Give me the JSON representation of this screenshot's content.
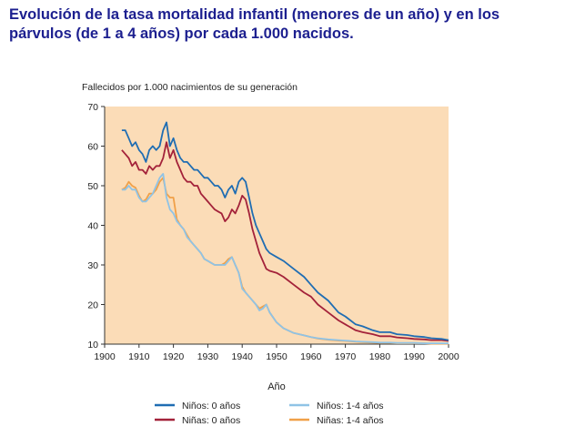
{
  "title": "Evolución de la tasa mortalidad infantil (menores de un año) y en los párvulos (de 1 a 4 años) por cada 1.000 nacidos.",
  "colors": {
    "plot_background": "#fbdcb7",
    "axis": "#333333"
  },
  "chart_data": {
    "type": "line",
    "title": "",
    "ylabel": "Fallecidos por 1.000 nacimientos de su generación",
    "xlabel": "Año",
    "xlim": [
      1900,
      2000
    ],
    "ylim": [
      10,
      70
    ],
    "xticks": [
      "1900",
      "1910",
      "1920",
      "1930",
      "1940",
      "1950",
      "1960",
      "1970",
      "1980",
      "1990",
      "2000"
    ],
    "yticks": [
      "10",
      "20",
      "30",
      "40",
      "50",
      "60",
      "70"
    ],
    "grid": false,
    "legend_position": "bottom",
    "series": [
      {
        "name": "Niños: 0 años",
        "color": "#1f6db3",
        "x": [
          1905,
          1906,
          1907,
          1908,
          1909,
          1910,
          1911,
          1912,
          1913,
          1914,
          1915,
          1916,
          1917,
          1918,
          1919,
          1920,
          1921,
          1922,
          1923,
          1924,
          1925,
          1926,
          1927,
          1928,
          1929,
          1930,
          1931,
          1932,
          1933,
          1934,
          1935,
          1936,
          1937,
          1938,
          1939,
          1940,
          1941,
          1942,
          1943,
          1944,
          1945,
          1946,
          1947,
          1948,
          1950,
          1952,
          1955,
          1958,
          1960,
          1962,
          1965,
          1968,
          1970,
          1973,
          1975,
          1978,
          1980,
          1983,
          1985,
          1988,
          1990,
          1993,
          1995,
          1998,
          2000
        ],
        "y": [
          64,
          64,
          62,
          60,
          61,
          59,
          58,
          56,
          59,
          60,
          59,
          60,
          64,
          66,
          60,
          62,
          59,
          57,
          56,
          56,
          55,
          54,
          54,
          53,
          52,
          52,
          51,
          50,
          50,
          49,
          47,
          49,
          50,
          48,
          51,
          52,
          51,
          47,
          43,
          40,
          38,
          36,
          34,
          33,
          32,
          31,
          29,
          27,
          25,
          23,
          21,
          18,
          17,
          15,
          14.5,
          13.5,
          13,
          13,
          12.5,
          12.3,
          12,
          11.8,
          11.5,
          11.3,
          11
        ]
      },
      {
        "name": "Niñas: 0 años",
        "color": "#a3223a",
        "x": [
          1905,
          1906,
          1907,
          1908,
          1909,
          1910,
          1911,
          1912,
          1913,
          1914,
          1915,
          1916,
          1917,
          1918,
          1919,
          1920,
          1921,
          1922,
          1923,
          1924,
          1925,
          1926,
          1927,
          1928,
          1929,
          1930,
          1931,
          1932,
          1933,
          1934,
          1935,
          1936,
          1937,
          1938,
          1939,
          1940,
          1941,
          1942,
          1943,
          1944,
          1945,
          1946,
          1947,
          1948,
          1950,
          1952,
          1955,
          1958,
          1960,
          1962,
          1965,
          1968,
          1970,
          1973,
          1975,
          1978,
          1980,
          1983,
          1985,
          1988,
          1990,
          1993,
          1995,
          1998,
          2000
        ],
        "y": [
          59,
          58,
          57,
          55,
          56,
          54,
          54,
          53,
          55,
          54,
          55,
          55,
          57,
          61,
          57,
          59,
          56,
          54,
          52,
          51,
          51,
          50,
          50,
          48,
          47,
          46,
          45,
          44,
          43.5,
          43,
          41,
          42,
          44,
          43,
          45,
          47.5,
          46.5,
          43,
          39,
          36,
          33,
          31,
          29,
          28.5,
          28,
          27,
          25,
          23,
          22,
          20,
          18,
          16,
          15,
          13.5,
          13,
          12.5,
          12,
          12,
          11.7,
          11.5,
          11.3,
          11.2,
          11,
          11,
          10.8
        ]
      },
      {
        "name": "Niños: 1-4 años",
        "color": "#8fc3e6",
        "x": [
          1905,
          1906,
          1907,
          1908,
          1909,
          1910,
          1911,
          1912,
          1913,
          1914,
          1915,
          1916,
          1917,
          1918,
          1919,
          1920,
          1921,
          1922,
          1923,
          1924,
          1925,
          1926,
          1927,
          1928,
          1929,
          1930,
          1931,
          1932,
          1933,
          1934,
          1935,
          1936,
          1937,
          1938,
          1939,
          1940,
          1941,
          1942,
          1943,
          1944,
          1945,
          1946,
          1947,
          1948,
          1950,
          1952,
          1955,
          1958,
          1960,
          1962,
          1965,
          1968,
          1970,
          1973,
          1975,
          1978,
          1980,
          1983,
          1985,
          1988,
          1990,
          1993,
          1995,
          1998,
          2000
        ],
        "y": [
          49,
          49,
          50,
          49,
          49,
          47,
          46,
          46,
          47,
          48,
          50,
          52,
          53,
          47,
          44,
          43,
          41,
          40,
          39,
          37,
          36,
          35,
          34,
          33,
          31.5,
          31,
          30.5,
          30,
          30,
          30,
          30,
          31,
          32,
          30,
          28,
          24,
          23,
          22,
          21,
          20,
          18.5,
          19,
          20,
          18,
          15.5,
          14,
          12.8,
          12.2,
          11.8,
          11.5,
          11.2,
          11,
          10.9,
          10.7,
          10.6,
          10.5,
          10.4,
          10.4,
          10.3,
          10.3,
          10.3,
          10.2,
          10.2,
          10.2,
          10.2
        ]
      },
      {
        "name": "Niñas: 1-4 años",
        "color": "#f0a048",
        "x": [
          1905,
          1906,
          1907,
          1908,
          1909,
          1910,
          1911,
          1912,
          1913,
          1914,
          1915,
          1916,
          1917,
          1918,
          1919,
          1920,
          1921,
          1922,
          1923,
          1924,
          1925,
          1926,
          1927,
          1928,
          1929,
          1930,
          1931,
          1932,
          1933,
          1934,
          1935,
          1936,
          1937,
          1938,
          1939,
          1940,
          1941,
          1942,
          1943,
          1944,
          1945,
          1946,
          1947,
          1948,
          1950,
          1952,
          1955,
          1958,
          1960,
          1962,
          1965,
          1968,
          1970,
          1973,
          1975,
          1978,
          1980,
          1983,
          1985,
          1988,
          1990,
          1993,
          1995,
          1998,
          2000
        ],
        "y": [
          49,
          49.5,
          51,
          50,
          49.5,
          47.5,
          46,
          46.5,
          48,
          48,
          49,
          51,
          52,
          48,
          47,
          47,
          41.5,
          40,
          39,
          37.5,
          36,
          35,
          34,
          33,
          31.5,
          31,
          30.5,
          30,
          30,
          30,
          30.5,
          31.5,
          32,
          30,
          28,
          24.5,
          23,
          22,
          21,
          20,
          19,
          19.5,
          20,
          18,
          15.5,
          14,
          12.8,
          12.2,
          11.8,
          11.4,
          11.1,
          10.9,
          10.8,
          10.6,
          10.5,
          10.4,
          10.3,
          10.3,
          10.2,
          10.2,
          10.2,
          10.2,
          10.1,
          10.1,
          10.1
        ]
      }
    ]
  }
}
